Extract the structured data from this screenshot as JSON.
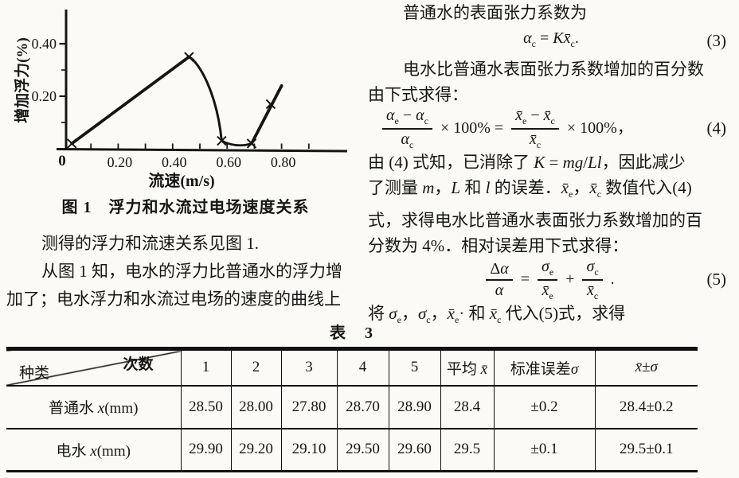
{
  "page": {
    "bg": "#fbfaf6",
    "ink": "#161616"
  },
  "figure": {
    "caption": "图 1　浮力和水流过电场速度关系"
  },
  "chart_data": {
    "type": "line",
    "title": "图 1 浮力和水流过电场速度关系",
    "xlabel": "流速(m/s)",
    "ylabel": "增加浮力(%)",
    "x": [
      0.03,
      0.46,
      0.58,
      0.69,
      0.76,
      0.8
    ],
    "y": [
      0.02,
      0.35,
      0.03,
      0.02,
      0.17,
      0.24
    ],
    "marker": "x",
    "marker_at_point": [
      true,
      true,
      true,
      true,
      true,
      false
    ],
    "xlim": [
      0,
      1.03
    ],
    "ylim": [
      0,
      0.52
    ],
    "origin_label": "0",
    "xticks": {
      "labeled": [
        0.2,
        0.4,
        0.6,
        0.8
      ],
      "labels": [
        "0.20",
        "0.40",
        "0.60",
        "0.80"
      ],
      "minor": [
        0.1,
        0.3,
        0.5,
        0.7,
        0.9
      ]
    },
    "yticks": {
      "labeled": [
        0.2,
        0.4
      ],
      "labels": [
        "0.20",
        "0.40"
      ],
      "minor": [
        0.1,
        0.3
      ]
    },
    "grid": false,
    "line_color": "#151515"
  },
  "lc": {
    "p1": "测得的浮力和流速关系见图 1.",
    "p2a": "从图 1 知，电水的浮力比普通水的浮力增",
    "p2b": "加了；电水浮力和水流过电场的速度的曲线上"
  },
  "rc": {
    "l1": "普通水的表面张力系数为",
    "eq3": {
      "body": "<i>α</i><sub>c</sub> = <i>Kx̄</i><sub>c</sub>.",
      "tag": "(3)"
    },
    "l2": "电水比普通水表面张力系数增加的百分数",
    "l3": "由下式求得：",
    "eq4": {
      "f1num": "<i>α</i><sub>e</sub> − <i>α</i><sub>c</sub>",
      "f1den": "<i>α</i><sub>c</sub>",
      "mid": "× 100% =",
      "f2num": "<i>x̄</i><sub>e</sub> − <i>x̄</i><sub>c</sub>",
      "f2den": "<i>x̄</i><sub>c</sub>",
      "tail": "× 100%，",
      "tag": "(4)"
    },
    "l4": "由 (4) 式知，已消除了 <i>K</i> = <i>mg</i>/<i>Ll</i>，因此减少",
    "l5": "了测量 <i>m</i>，<i>L</i> 和 <i>l</i> 的误差．<i>x̄</i><sub>e</sub>，<i>x̄</i><sub>c</sub> 数值代入(4)",
    "l6": "式，求得电水比普通水表面张力系数增加的百",
    "l7": "分数为 4%．相对误差用下式求得：",
    "eq5": {
      "f1num": "Δ<i>α</i>",
      "f1den": "<i>α</i>",
      "mid": "=",
      "f2num": "<i>σ</i><sub>e</sub>",
      "f2den": "<i>x̄</i><sub>e</sub>",
      "mid2": "+",
      "f3num": "<i>σ</i><sub>c</sub>",
      "f3den": "<i>x̄</i><sub>c</sub>",
      "tail": ".",
      "tag": "(5)"
    },
    "l8": "将 <i>σ</i><sub>e</sub>，<i>σ</i><sub>c</sub>，<i>x̄</i><sub>e</sub>· 和 <i>x̄</i><sub>c</sub> 代入(5)式，求得"
  },
  "table": {
    "caption": "表　3",
    "corner_top": "次数",
    "corner_bottom": "种类",
    "headers": [
      "1",
      "2",
      "3",
      "4",
      "5",
      "平均 <i>x̄</i>",
      "标准误差<i>σ</i>",
      "<i>x̄</i>±<i>σ</i>"
    ],
    "rows": [
      {
        "label": "普通水 <i>x</i>(mm)",
        "cells": [
          "28.50",
          "28.00",
          "27.80",
          "28.70",
          "28.90",
          "28.4",
          "±0.2",
          "28.4±0.2"
        ]
      },
      {
        "label": "电水 <i>x</i>(mm)",
        "cells": [
          "29.90",
          "29.20",
          "29.10",
          "29.50",
          "29.60",
          "29.5",
          "±0.1",
          "29.5±0.1"
        ]
      }
    ]
  }
}
